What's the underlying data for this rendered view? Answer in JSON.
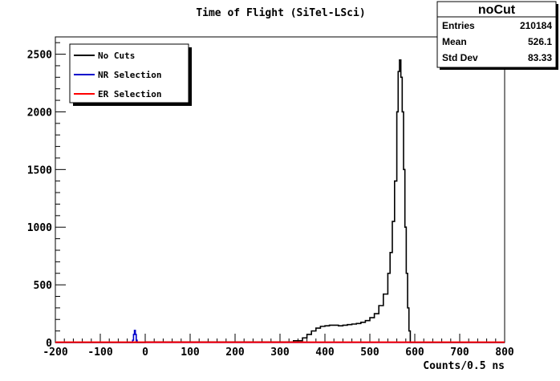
{
  "chart_data": {
    "type": "line",
    "title": "Time of Flight (SiTel-LSci)",
    "xlabel": "Counts/0.5 ns",
    "ylabel": "",
    "xlim": [
      -200,
      800
    ],
    "ylim": [
      0,
      2650
    ],
    "x_ticks": [
      -200,
      -100,
      0,
      100,
      200,
      300,
      400,
      500,
      600,
      700,
      800
    ],
    "y_ticks": [
      0,
      500,
      1000,
      1500,
      2000,
      2500
    ],
    "legend_position": "top-left",
    "series": [
      {
        "name": "No Cuts",
        "color": "#000000",
        "x": [
          -200,
          0,
          300,
          330,
          350,
          360,
          370,
          380,
          390,
          400,
          410,
          420,
          430,
          440,
          450,
          460,
          470,
          480,
          490,
          500,
          510,
          520,
          530,
          540,
          545,
          550,
          555,
          560,
          563,
          566,
          569,
          572,
          575,
          578,
          581,
          584,
          587,
          590,
          800
        ],
        "y": [
          0,
          5,
          5,
          15,
          40,
          70,
          100,
          125,
          140,
          145,
          150,
          150,
          145,
          150,
          155,
          160,
          165,
          175,
          190,
          215,
          250,
          320,
          420,
          600,
          780,
          1050,
          1400,
          2000,
          2350,
          2450,
          2300,
          2000,
          1500,
          1000,
          600,
          300,
          100,
          0,
          0
        ]
      },
      {
        "name": "NR Selection",
        "color": "#0000cc",
        "x": [
          -200,
          -30,
          -28,
          -26,
          -24,
          -22,
          -20,
          -18,
          800
        ],
        "y": [
          0,
          0,
          20,
          70,
          105,
          70,
          20,
          0,
          0
        ]
      },
      {
        "name": "ER Selection",
        "color": "#ff0000",
        "x": [
          -200,
          800
        ],
        "y": [
          3,
          3
        ]
      }
    ],
    "stats_box": {
      "name": "noCut",
      "rows": [
        {
          "label": "Entries",
          "value": "210184"
        },
        {
          "label": "Mean",
          "value": "526.1"
        },
        {
          "label": "Std Dev",
          "value": "83.33"
        }
      ]
    }
  }
}
